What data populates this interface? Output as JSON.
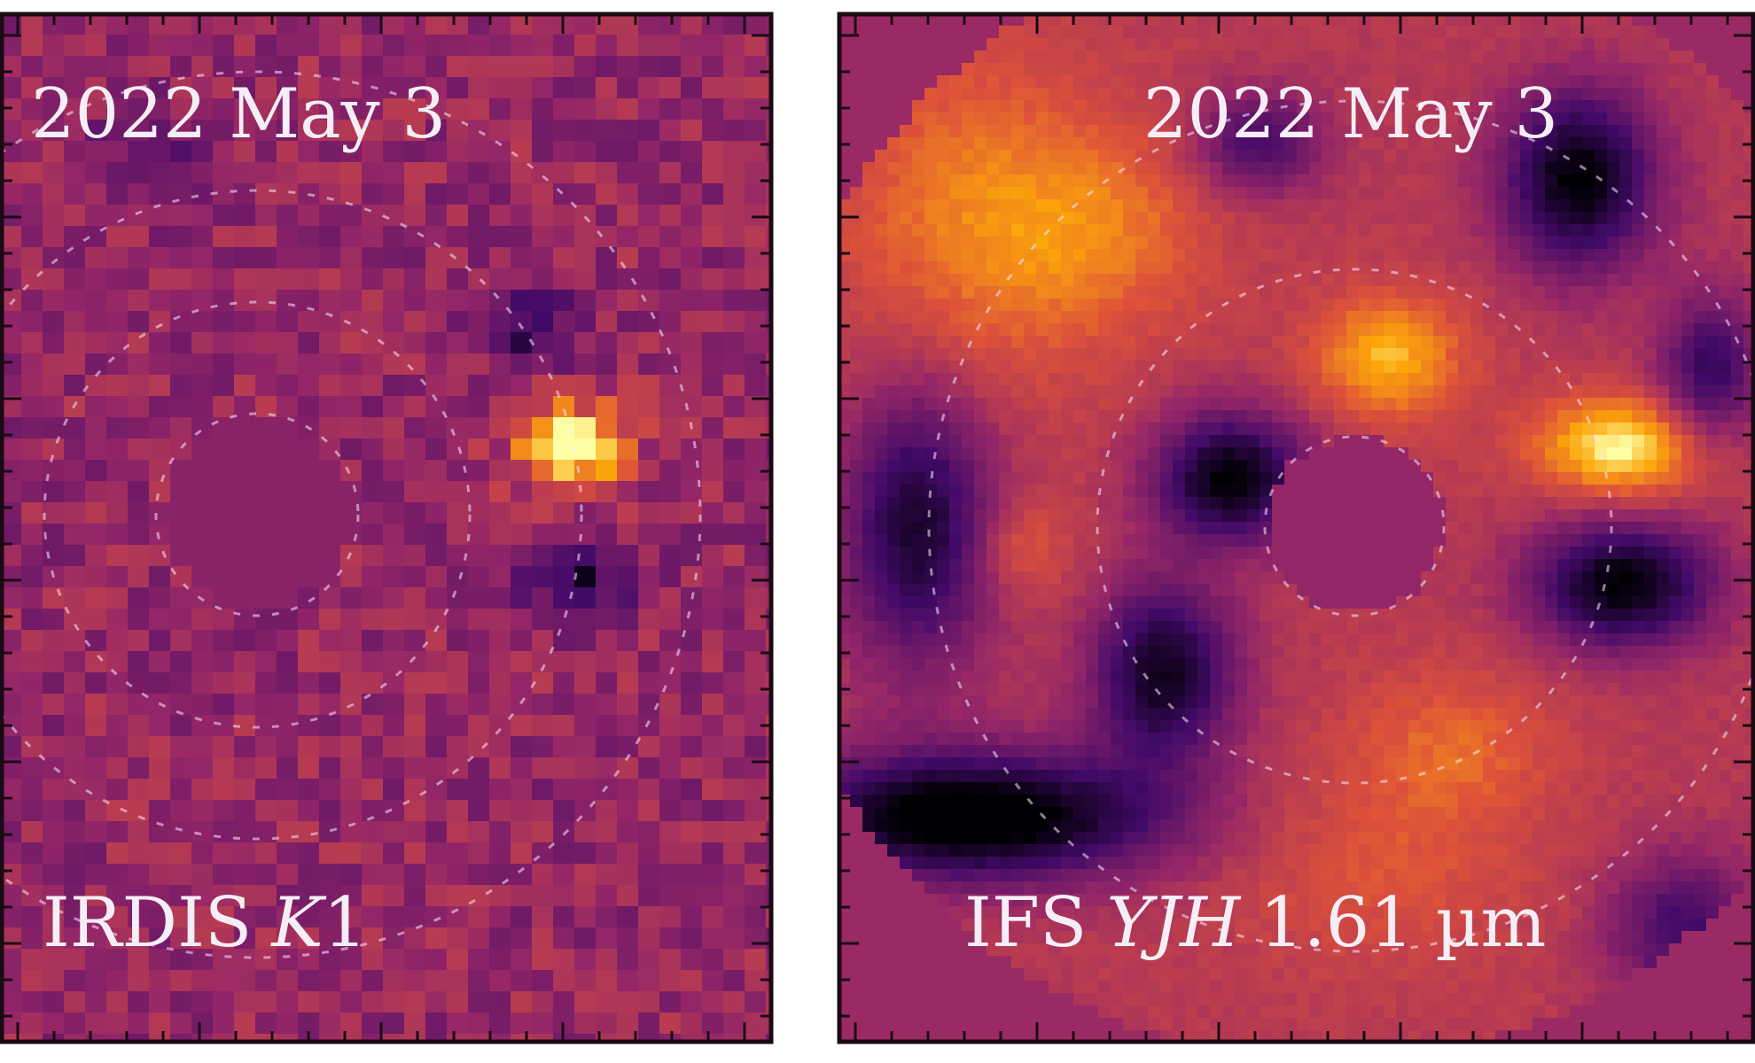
{
  "panels": [
    {
      "date": "2022 May 3",
      "label": {
        "instrument": "IRDIS",
        "band": "K",
        "band_suffix": "1"
      }
    },
    {
      "date": "2022 May 3",
      "label": {
        "instrument": "IFS",
        "band": "YJH",
        "wavelength": "1.61 µm"
      }
    }
  ]
}
